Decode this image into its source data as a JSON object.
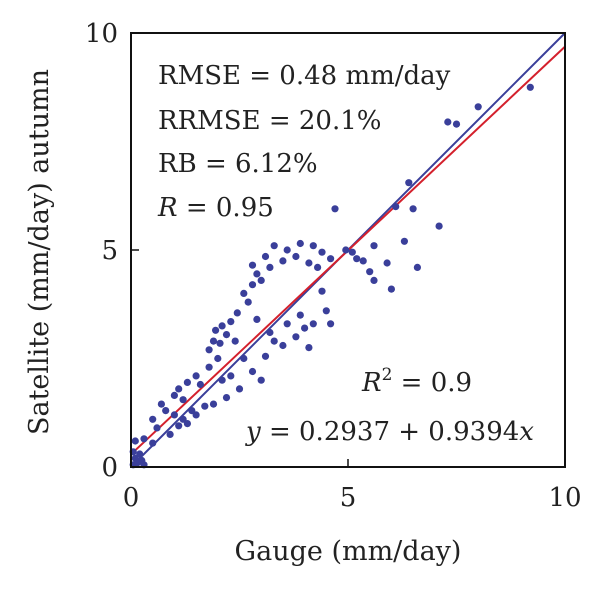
{
  "chart_data": {
    "type": "scatter",
    "title": "",
    "xlabel": "Gauge (mm/day)",
    "ylabel": "Satellite (mm/day) autumn",
    "xlim": [
      0,
      10
    ],
    "ylim": [
      0,
      10
    ],
    "xticks": [
      "0",
      "5",
      "10"
    ],
    "yticks": [
      "0",
      "5",
      "10"
    ],
    "grid": false,
    "point_color": "#3a3f9a",
    "stats": {
      "rmse": "RMSE = 0.48 mm/day",
      "rrmse": "RRMSE = 20.1%",
      "rb": "RB = 6.12%",
      "r_sym": "R",
      "r_val": " = 0.95",
      "r2_sym": "R",
      "r2_exp": "2",
      "r2_val": " = 0.9",
      "eq_var": "y",
      "eq_mid": " = 0.2937 + 0.9394",
      "eq_x": "x"
    },
    "lines": [
      {
        "kind": "1:1 line",
        "intercept": 0,
        "slope": 1,
        "color": "#3a3f9a"
      },
      {
        "kind": "regression",
        "intercept": 0.2937,
        "slope": 0.9394,
        "color": "#d4202c"
      }
    ],
    "points": [
      [
        9.2,
        8.75
      ],
      [
        8.0,
        8.3
      ],
      [
        7.5,
        7.9
      ],
      [
        7.3,
        7.95
      ],
      [
        6.4,
        6.55
      ],
      [
        6.5,
        5.95
      ],
      [
        6.1,
        6.0
      ],
      [
        7.1,
        5.55
      ],
      [
        6.6,
        4.6
      ],
      [
        6.3,
        5.2
      ],
      [
        5.9,
        4.7
      ],
      [
        6.0,
        4.1
      ],
      [
        5.6,
        4.3
      ],
      [
        5.6,
        5.1
      ],
      [
        5.35,
        4.75
      ],
      [
        5.5,
        4.5
      ],
      [
        4.7,
        5.95
      ],
      [
        4.95,
        5.0
      ],
      [
        5.1,
        4.95
      ],
      [
        5.2,
        4.8
      ],
      [
        3.1,
        4.85
      ],
      [
        3.3,
        5.1
      ],
      [
        3.6,
        5.0
      ],
      [
        3.9,
        5.15
      ],
      [
        4.2,
        5.1
      ],
      [
        4.4,
        4.95
      ],
      [
        4.6,
        4.8
      ],
      [
        3.5,
        4.75
      ],
      [
        3.8,
        4.85
      ],
      [
        4.1,
        4.7
      ],
      [
        4.3,
        4.6
      ],
      [
        3.2,
        4.6
      ],
      [
        2.8,
        4.65
      ],
      [
        2.9,
        4.45
      ],
      [
        3.1,
        2.55
      ],
      [
        3.5,
        2.8
      ],
      [
        3.8,
        3.0
      ],
      [
        4.2,
        3.3
      ],
      [
        4.6,
        3.3
      ],
      [
        4.1,
        2.75
      ],
      [
        3.3,
        2.9
      ],
      [
        3.9,
        3.5
      ],
      [
        4.5,
        3.6
      ],
      [
        4.4,
        4.05
      ],
      [
        3.6,
        3.3
      ],
      [
        4.0,
        3.2
      ],
      [
        3.2,
        3.1
      ],
      [
        2.9,
        3.4
      ],
      [
        2.4,
        2.9
      ],
      [
        2.1,
        3.25
      ],
      [
        2.2,
        3.05
      ],
      [
        2.45,
        3.55
      ],
      [
        2.7,
        3.8
      ],
      [
        2.8,
        4.2
      ],
      [
        3.0,
        4.3
      ],
      [
        2.6,
        4.0
      ],
      [
        2.3,
        3.35
      ],
      [
        1.9,
        2.9
      ],
      [
        1.8,
        2.7
      ],
      [
        1.95,
        3.15
      ],
      [
        2.05,
        2.85
      ],
      [
        0.1,
        0.6
      ],
      [
        0.3,
        0.65
      ],
      [
        0.5,
        0.55
      ],
      [
        0.6,
        0.9
      ],
      [
        0.8,
        1.3
      ],
      [
        1.0,
        1.2
      ],
      [
        1.2,
        1.1
      ],
      [
        0.9,
        0.75
      ],
      [
        1.1,
        0.95
      ],
      [
        1.3,
        1.0
      ],
      [
        1.5,
        1.2
      ],
      [
        1.7,
        1.4
      ],
      [
        1.4,
        1.3
      ],
      [
        1.2,
        1.55
      ],
      [
        1.0,
        1.65
      ],
      [
        0.7,
        1.45
      ],
      [
        0.5,
        1.1
      ],
      [
        1.6,
        1.9
      ],
      [
        1.8,
        2.3
      ],
      [
        2.0,
        2.5
      ],
      [
        1.5,
        2.1
      ],
      [
        1.3,
        1.95
      ],
      [
        1.1,
        1.8
      ],
      [
        1.9,
        1.45
      ],
      [
        2.2,
        1.6
      ],
      [
        2.5,
        1.8
      ],
      [
        2.8,
        2.2
      ],
      [
        2.6,
        2.5
      ],
      [
        2.3,
        2.1
      ],
      [
        2.1,
        2.0
      ],
      [
        3.0,
        2.0
      ],
      [
        0.05,
        0.05
      ],
      [
        0.1,
        0.2
      ],
      [
        0.15,
        0.1
      ],
      [
        0.2,
        0.3
      ],
      [
        0.25,
        0.15
      ],
      [
        0.05,
        0.35
      ],
      [
        0.3,
        0.05
      ]
    ]
  }
}
